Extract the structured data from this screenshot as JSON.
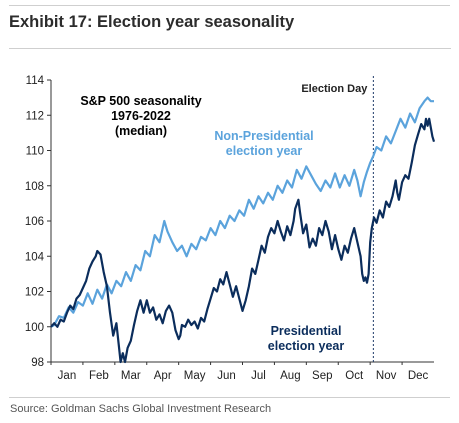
{
  "header": {
    "title": "Exhibit 17: Election year seasonality"
  },
  "footer": {
    "source": "Source: Goldman Sachs Global Investment Research"
  },
  "chart_data": {
    "type": "line",
    "title": "S&P 500 seasonality\n1976-2022\n(median)",
    "xlabel": "",
    "ylabel": "",
    "x_label_template": "trading day",
    "categories": [
      "Jan",
      "Feb",
      "Mar",
      "Apr",
      "May",
      "Jun",
      "Jul",
      "Aug",
      "Sep",
      "Oct",
      "Nov",
      "Dec"
    ],
    "ylim": [
      98,
      114
    ],
    "yticks": [
      98,
      100,
      102,
      104,
      106,
      108,
      110,
      112,
      114
    ],
    "grid": false,
    "annotation": {
      "text": "Election Day",
      "x_month": 10.1
    },
    "series": [
      {
        "name": "Non-Presidential\nelection year",
        "color": "#5ba3dc",
        "points": [
          [
            0,
            100.0
          ],
          [
            0.1,
            100.1
          ],
          [
            0.25,
            100.6
          ],
          [
            0.4,
            100.5
          ],
          [
            0.55,
            101.1
          ],
          [
            0.7,
            100.8
          ],
          [
            0.85,
            101.4
          ],
          [
            1.0,
            101.2
          ],
          [
            1.15,
            101.9
          ],
          [
            1.3,
            101.3
          ],
          [
            1.45,
            102.1
          ],
          [
            1.6,
            101.6
          ],
          [
            1.75,
            102.4
          ],
          [
            1.9,
            101.9
          ],
          [
            2.05,
            102.6
          ],
          [
            2.2,
            102.3
          ],
          [
            2.35,
            103.1
          ],
          [
            2.5,
            102.6
          ],
          [
            2.65,
            103.5
          ],
          [
            2.8,
            103.2
          ],
          [
            2.95,
            104.3
          ],
          [
            3.1,
            104.0
          ],
          [
            3.25,
            105.2
          ],
          [
            3.4,
            104.8
          ],
          [
            3.55,
            106.0
          ],
          [
            3.65,
            105.4
          ],
          [
            3.8,
            104.8
          ],
          [
            3.95,
            104.3
          ],
          [
            4.1,
            104.6
          ],
          [
            4.25,
            104.0
          ],
          [
            4.4,
            104.7
          ],
          [
            4.55,
            104.4
          ],
          [
            4.7,
            105.1
          ],
          [
            4.85,
            104.9
          ],
          [
            5.0,
            105.6
          ],
          [
            5.15,
            105.2
          ],
          [
            5.3,
            106.0
          ],
          [
            5.45,
            105.6
          ],
          [
            5.6,
            106.3
          ],
          [
            5.75,
            106.0
          ],
          [
            5.9,
            106.6
          ],
          [
            6.05,
            106.3
          ],
          [
            6.2,
            107.2
          ],
          [
            6.35,
            106.7
          ],
          [
            6.5,
            107.4
          ],
          [
            6.65,
            107.0
          ],
          [
            6.8,
            107.6
          ],
          [
            6.95,
            107.2
          ],
          [
            7.1,
            108.0
          ],
          [
            7.25,
            107.6
          ],
          [
            7.4,
            108.3
          ],
          [
            7.55,
            107.9
          ],
          [
            7.7,
            108.9
          ],
          [
            7.85,
            108.4
          ],
          [
            8.0,
            109.1
          ],
          [
            8.15,
            108.6
          ],
          [
            8.3,
            108.1
          ],
          [
            8.45,
            107.7
          ],
          [
            8.6,
            108.3
          ],
          [
            8.75,
            107.9
          ],
          [
            8.9,
            108.7
          ],
          [
            9.05,
            107.9
          ],
          [
            9.2,
            108.6
          ],
          [
            9.35,
            108.0
          ],
          [
            9.5,
            108.9
          ],
          [
            9.6,
            108.3
          ],
          [
            9.7,
            107.4
          ],
          [
            9.8,
            108.2
          ],
          [
            9.9,
            108.8
          ],
          [
            10.0,
            109.3
          ],
          [
            10.1,
            109.7
          ],
          [
            10.2,
            110.2
          ],
          [
            10.35,
            110.0
          ],
          [
            10.5,
            110.8
          ],
          [
            10.65,
            110.4
          ],
          [
            10.8,
            111.1
          ],
          [
            10.95,
            111.8
          ],
          [
            11.1,
            111.3
          ],
          [
            11.25,
            112.1
          ],
          [
            11.4,
            111.6
          ],
          [
            11.55,
            112.4
          ],
          [
            11.7,
            112.8
          ],
          [
            11.8,
            113.0
          ],
          [
            11.9,
            112.8
          ],
          [
            12.0,
            112.8
          ]
        ]
      },
      {
        "name": "Presidential\nelection year",
        "color": "#0b2d5c",
        "points": [
          [
            0,
            100.0
          ],
          [
            0.1,
            100.2
          ],
          [
            0.2,
            100.0
          ],
          [
            0.3,
            100.4
          ],
          [
            0.4,
            100.3
          ],
          [
            0.5,
            100.8
          ],
          [
            0.6,
            101.2
          ],
          [
            0.7,
            101.0
          ],
          [
            0.8,
            101.6
          ],
          [
            0.9,
            101.8
          ],
          [
            1.0,
            102.2
          ],
          [
            1.1,
            102.6
          ],
          [
            1.2,
            103.3
          ],
          [
            1.3,
            103.7
          ],
          [
            1.4,
            104.0
          ],
          [
            1.45,
            104.3
          ],
          [
            1.55,
            104.1
          ],
          [
            1.65,
            103.1
          ],
          [
            1.75,
            102.3
          ],
          [
            1.85,
            100.8
          ],
          [
            1.95,
            99.5
          ],
          [
            2.05,
            100.2
          ],
          [
            2.12,
            99.0
          ],
          [
            2.18,
            98.0
          ],
          [
            2.25,
            98.5
          ],
          [
            2.32,
            98.0
          ],
          [
            2.4,
            98.8
          ],
          [
            2.5,
            99.2
          ],
          [
            2.6,
            100.1
          ],
          [
            2.7,
            100.9
          ],
          [
            2.8,
            101.5
          ],
          [
            2.9,
            100.8
          ],
          [
            3.0,
            101.5
          ],
          [
            3.1,
            100.8
          ],
          [
            3.2,
            101.1
          ],
          [
            3.3,
            100.4
          ],
          [
            3.4,
            100.7
          ],
          [
            3.5,
            100.2
          ],
          [
            3.6,
            100.9
          ],
          [
            3.7,
            101.2
          ],
          [
            3.8,
            100.8
          ],
          [
            3.9,
            99.8
          ],
          [
            4.0,
            99.3
          ],
          [
            4.05,
            99.5
          ],
          [
            4.1,
            100.1
          ],
          [
            4.2,
            100.0
          ],
          [
            4.3,
            100.4
          ],
          [
            4.4,
            100.1
          ],
          [
            4.5,
            100.3
          ],
          [
            4.6,
            99.9
          ],
          [
            4.7,
            100.5
          ],
          [
            4.8,
            100.3
          ],
          [
            4.9,
            101.0
          ],
          [
            5.0,
            101.6
          ],
          [
            5.1,
            102.2
          ],
          [
            5.2,
            102.0
          ],
          [
            5.3,
            102.7
          ],
          [
            5.4,
            102.4
          ],
          [
            5.5,
            103.1
          ],
          [
            5.6,
            102.4
          ],
          [
            5.7,
            101.7
          ],
          [
            5.8,
            102.3
          ],
          [
            5.9,
            101.6
          ],
          [
            6.0,
            100.9
          ],
          [
            6.1,
            101.5
          ],
          [
            6.2,
            102.3
          ],
          [
            6.3,
            103.3
          ],
          [
            6.4,
            103.0
          ],
          [
            6.5,
            103.8
          ],
          [
            6.6,
            104.6
          ],
          [
            6.7,
            104.2
          ],
          [
            6.8,
            105.1
          ],
          [
            6.9,
            105.6
          ],
          [
            7.0,
            105.3
          ],
          [
            7.1,
            106.0
          ],
          [
            7.2,
            105.4
          ],
          [
            7.3,
            104.9
          ],
          [
            7.4,
            105.7
          ],
          [
            7.5,
            105.2
          ],
          [
            7.6,
            106.0
          ],
          [
            7.65,
            106.7
          ],
          [
            7.75,
            107.2
          ],
          [
            7.8,
            106.5
          ],
          [
            7.9,
            105.3
          ],
          [
            8.0,
            105.8
          ],
          [
            8.1,
            104.5
          ],
          [
            8.2,
            105.0
          ],
          [
            8.3,
            104.6
          ],
          [
            8.4,
            105.6
          ],
          [
            8.5,
            105.2
          ],
          [
            8.6,
            106.0
          ],
          [
            8.7,
            105.4
          ],
          [
            8.8,
            104.4
          ],
          [
            8.9,
            105.2
          ],
          [
            9.0,
            104.4
          ],
          [
            9.1,
            103.8
          ],
          [
            9.2,
            104.6
          ],
          [
            9.3,
            104.2
          ],
          [
            9.4,
            105.0
          ],
          [
            9.5,
            105.6
          ],
          [
            9.6,
            104.8
          ],
          [
            9.7,
            104.0
          ],
          [
            9.75,
            103.0
          ],
          [
            9.8,
            102.6
          ],
          [
            9.85,
            102.8
          ],
          [
            9.9,
            102.5
          ],
          [
            9.95,
            103.0
          ],
          [
            10.0,
            104.8
          ],
          [
            10.05,
            105.6
          ],
          [
            10.12,
            106.2
          ],
          [
            10.2,
            105.9
          ],
          [
            10.3,
            106.6
          ],
          [
            10.4,
            106.2
          ],
          [
            10.5,
            107.1
          ],
          [
            10.6,
            106.8
          ],
          [
            10.7,
            107.4
          ],
          [
            10.8,
            108.3
          ],
          [
            10.85,
            107.6
          ],
          [
            10.9,
            107.2
          ],
          [
            11.0,
            108.2
          ],
          [
            11.1,
            108.6
          ],
          [
            11.2,
            108.4
          ],
          [
            11.3,
            109.3
          ],
          [
            11.4,
            110.3
          ],
          [
            11.5,
            110.9
          ],
          [
            11.6,
            111.5
          ],
          [
            11.7,
            111.2
          ],
          [
            11.75,
            111.8
          ],
          [
            11.8,
            111.4
          ],
          [
            11.85,
            111.8
          ],
          [
            11.9,
            111.3
          ],
          [
            11.95,
            110.8
          ],
          [
            12.0,
            110.5
          ]
        ]
      }
    ]
  }
}
